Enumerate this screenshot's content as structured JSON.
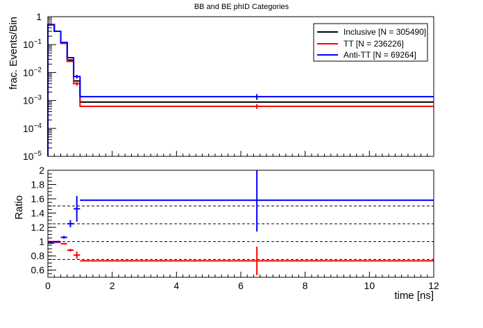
{
  "chart_data": [
    {
      "type": "line",
      "title": "BB and BE phID Categories",
      "xlabel": "",
      "ylabel": "frac. Events/Bin",
      "xlim": [
        0,
        12
      ],
      "ylim": [
        1e-05,
        1
      ],
      "y_scale": "log",
      "y_ticks": [
        {
          "v": 1,
          "base": "1",
          "exp": ""
        },
        {
          "v": 0.1,
          "base": "10",
          "exp": "−1"
        },
        {
          "v": 0.01,
          "base": "10",
          "exp": "−2"
        },
        {
          "v": 0.001,
          "base": "10",
          "exp": "−3"
        },
        {
          "v": 0.0001,
          "base": "10",
          "exp": "−4"
        },
        {
          "v": 1e-05,
          "base": "10",
          "exp": "−5"
        }
      ],
      "legend_position": "top-right",
      "bin_edges": [
        0,
        0.2,
        0.4,
        0.6,
        0.8,
        1.0,
        12
      ],
      "series": [
        {
          "name": "Inclusive [N = 305490]",
          "color": "#000000",
          "values": [
            0.52,
            0.3,
            0.115,
            0.028,
            0.005,
            0.00088
          ],
          "err": [
            0,
            0,
            0,
            0,
            0,
            0
          ]
        },
        {
          "name": "TT [N = 236226]",
          "color": "#ff0000",
          "values": [
            0.53,
            0.3,
            0.11,
            0.025,
            0.004,
            0.00062
          ],
          "err": [
            0,
            0,
            0,
            0,
            0.0006,
            0.00012
          ]
        },
        {
          "name": "Anti-TT [N = 69264]",
          "color": "#0000ff",
          "values": [
            0.51,
            0.3,
            0.12,
            0.034,
            0.0072,
            0.00137
          ],
          "err": [
            0,
            0,
            0,
            0,
            0.0011,
            0.00032
          ]
        }
      ]
    },
    {
      "type": "scatter",
      "xlabel": "time [ns]",
      "ylabel": "Ratio",
      "xlim": [
        0,
        12
      ],
      "ylim": [
        0.5,
        2
      ],
      "x_ticks": [
        0,
        2,
        4,
        6,
        8,
        10,
        12
      ],
      "y_ticks": [
        0.6,
        0.8,
        1,
        1.2,
        1.4,
        1.6,
        1.8,
        2
      ],
      "y_tick_labels": [
        "0.6",
        "0.8",
        "1",
        "1.2",
        "1.4",
        "1.6",
        "1.8",
        "2"
      ],
      "reference_lines": [
        0.75,
        1.0,
        1.25,
        1.5
      ],
      "bin_edges": [
        0,
        0.2,
        0.4,
        0.6,
        0.8,
        1.0,
        12
      ],
      "series": [
        {
          "name": "",
          "color": "#ff0000",
          "values": [
            1.0,
            0.99,
            0.97,
            0.88,
            0.81,
            0.73
          ],
          "err": [
            0.005,
            0.006,
            0.01,
            0.02,
            0.05,
            0.2
          ]
        },
        {
          "name": "",
          "color": "#0000ff",
          "values": [
            0.98,
            1.0,
            1.06,
            1.25,
            1.46,
            1.58
          ],
          "err": [
            0.01,
            0.01,
            0.02,
            0.05,
            0.18,
            0.44
          ]
        }
      ]
    }
  ]
}
